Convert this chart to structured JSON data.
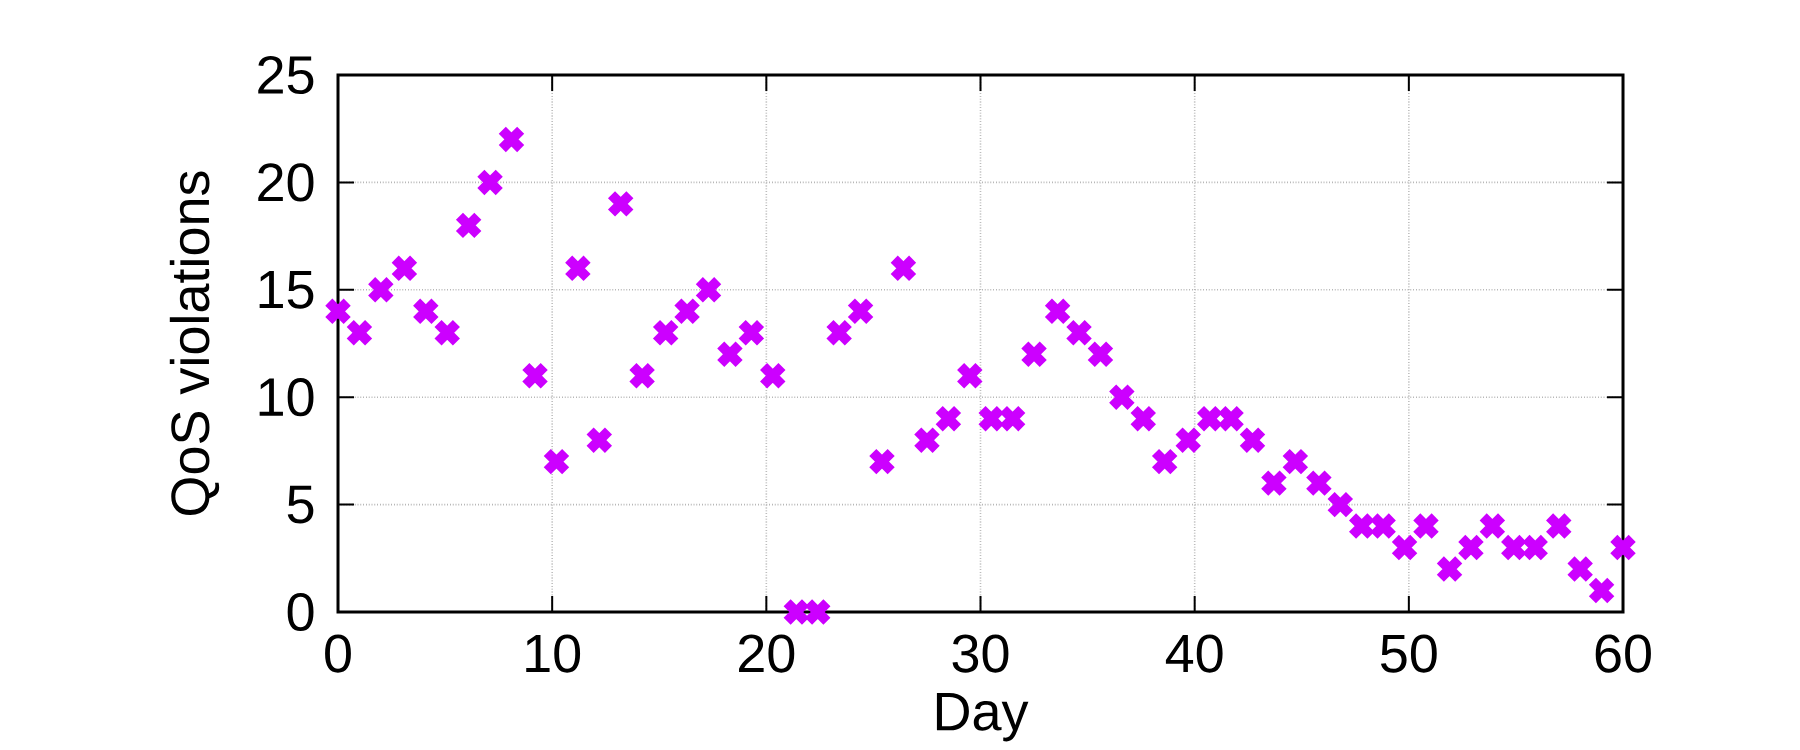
{
  "chart_data": {
    "type": "scatter",
    "xlabel": "Day",
    "ylabel": "QoS violations",
    "x": [
      0,
      1,
      2,
      3.1,
      4.1,
      5.1,
      6.1,
      7.1,
      8.1,
      9.2,
      10.2,
      11.2,
      12.2,
      13.2,
      14.2,
      15.3,
      16.3,
      17.3,
      18.3,
      19.3,
      20.3,
      21.4,
      22.4,
      23.4,
      24.4,
      25.4,
      26.4,
      27.5,
      28.5,
      29.5,
      30.5,
      31.5,
      32.5,
      33.6,
      34.6,
      35.6,
      36.6,
      37.6,
      38.6,
      39.7,
      40.7,
      41.7,
      42.7,
      43.7,
      44.7,
      45.8,
      46.8,
      47.8,
      48.8,
      49.8,
      50.8,
      51.9,
      52.9,
      53.9,
      54.9,
      55.9,
      57,
      58,
      59,
      60
    ],
    "values": [
      14,
      13,
      15,
      16,
      14,
      13,
      18,
      20,
      22,
      11,
      7,
      16,
      8,
      19,
      11,
      13,
      14,
      15,
      12,
      13,
      11,
      0,
      0,
      13,
      14,
      7,
      16,
      8,
      9,
      11,
      9,
      9,
      12,
      14,
      13,
      12,
      10,
      9,
      7,
      8,
      9,
      9,
      8,
      6,
      7,
      6,
      5,
      4,
      4,
      3,
      4,
      2,
      3,
      4,
      3,
      3,
      4,
      2,
      1,
      3
    ],
    "color": "#cc00ff",
    "marker": "cross",
    "xlim": [
      0,
      60
    ],
    "ylim": [
      0,
      25
    ],
    "xticks": [
      0,
      10,
      20,
      30,
      40,
      50,
      60
    ],
    "yticks": [
      0,
      5,
      10,
      15,
      20,
      25
    ],
    "grid": true
  }
}
